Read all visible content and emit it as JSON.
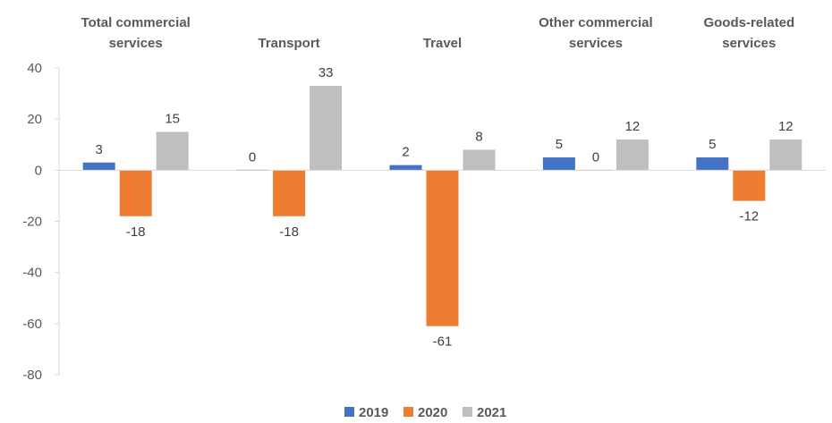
{
  "chart_data": {
    "type": "bar",
    "categories": [
      [
        "Total commercial",
        "services"
      ],
      [
        "Transport"
      ],
      [
        "Travel"
      ],
      [
        "Other commercial",
        "services"
      ],
      [
        "Goods-related",
        "services"
      ]
    ],
    "series": [
      {
        "name": "2019",
        "color": "#4472C4",
        "values": [
          3,
          0,
          2,
          5,
          5
        ],
        "labels": [
          "3",
          "0",
          "2",
          "5",
          "5"
        ]
      },
      {
        "name": "2020",
        "color": "#ED7D31",
        "values": [
          -18,
          -18,
          -61,
          0,
          -12
        ],
        "labels": [
          "-18",
          "-18",
          "-61",
          "0",
          "-12"
        ]
      },
      {
        "name": "2021",
        "color": "#BFBFBF",
        "values": [
          15,
          33,
          8,
          12,
          12
        ],
        "labels": [
          "15",
          "33",
          "8",
          "12",
          "12"
        ]
      }
    ],
    "ylim": [
      -80,
      40
    ],
    "yticks": [
      40,
      20,
      0,
      -20,
      -40,
      -60,
      -80
    ],
    "grid": false,
    "legend_position": "bottom",
    "category_labels_position": "top"
  }
}
